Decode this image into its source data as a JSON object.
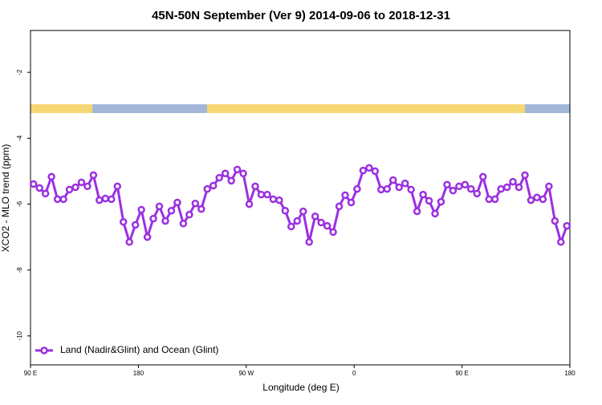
{
  "chart_data": {
    "type": "line",
    "title": "45N-50N September (Ver 9)   2014-09-06 to 2018-12-31",
    "x_label": "Longitude (deg E)",
    "y_label": "XCO2 - MLO trend (ppm)",
    "xlim": [
      90,
      540
    ],
    "ylim": [
      -10.88,
      -0.73
    ],
    "xticks": [
      {
        "value": 90,
        "label": "90 E"
      },
      {
        "value": 180,
        "label": "180"
      },
      {
        "value": 270,
        "label": "90 W"
      },
      {
        "value": 360,
        "label": "0"
      },
      {
        "value": 450,
        "label": "90 E"
      },
      {
        "value": 540,
        "label": "180"
      }
    ],
    "yticks": [
      -2,
      -4,
      -6,
      -8,
      -10
    ],
    "legend": "bottom-left",
    "x": [
      92.5,
      97.5,
      102.5,
      107.5,
      112.5,
      117.5,
      122.5,
      127.5,
      132.5,
      137.5,
      142.5,
      147.5,
      152.5,
      157.5,
      162.5,
      167.5,
      172.5,
      177.5,
      182.5,
      187.5,
      192.5,
      197.5,
      202.5,
      207.5,
      212.5,
      217.5,
      222.5,
      227.5,
      232.5,
      237.5,
      242.5,
      247.5,
      252.5,
      257.5,
      262.5,
      267.5,
      272.5,
      277.5,
      282.5,
      287.5,
      292.5,
      297.5,
      302.5,
      307.5,
      312.5,
      317.5,
      322.5,
      327.5,
      332.5,
      337.5,
      342.5,
      347.5,
      352.5,
      357.5,
      362.5,
      367.5,
      372.5,
      377.5,
      382.5,
      387.5,
      392.5,
      397.5,
      402.5,
      407.5,
      412.5,
      417.5,
      422.5,
      427.5,
      432.5,
      437.5,
      442.5,
      447.5,
      452.5,
      457.5,
      462.5,
      467.5,
      472.5,
      477.5,
      482.5,
      487.5,
      492.5,
      497.5,
      502.5,
      507.5,
      512.5,
      517.5,
      522.5,
      527.5,
      532.5,
      537.5
    ],
    "series": [
      {
        "name": "Land (Nadir&Glint) and Ocean (Glint)",
        "color": "#9b30e0",
        "values": [
          -5.39,
          -5.51,
          -5.68,
          -5.17,
          -5.85,
          -5.85,
          -5.56,
          -5.49,
          -5.34,
          -5.46,
          -5.12,
          -5.88,
          -5.83,
          -5.85,
          -5.46,
          -6.54,
          -7.15,
          -6.63,
          -6.17,
          -7.0,
          -6.44,
          -6.07,
          -6.51,
          -6.2,
          -5.95,
          -6.59,
          -6.32,
          -5.98,
          -6.15,
          -5.54,
          -5.44,
          -5.2,
          -5.07,
          -5.29,
          -4.95,
          -5.07,
          -6.0,
          -5.46,
          -5.71,
          -5.71,
          -5.85,
          -5.88,
          -6.2,
          -6.68,
          -6.51,
          -6.22,
          -7.15,
          -6.37,
          -6.56,
          -6.66,
          -6.85,
          -6.07,
          -5.73,
          -5.95,
          -5.54,
          -4.98,
          -4.9,
          -5.0,
          -5.56,
          -5.54,
          -5.27,
          -5.49,
          -5.37,
          -5.56,
          -6.22,
          -5.71,
          -5.9,
          -6.29,
          -5.93,
          -5.41,
          -5.59,
          -5.46,
          -5.41,
          -5.54,
          -5.68,
          -5.17,
          -5.85,
          -5.85,
          -5.54,
          -5.49,
          -5.32,
          -5.49,
          -5.12,
          -5.88,
          -5.8,
          -5.85,
          -5.46,
          -6.51,
          -7.15,
          -6.66
        ]
      }
    ]
  }
}
